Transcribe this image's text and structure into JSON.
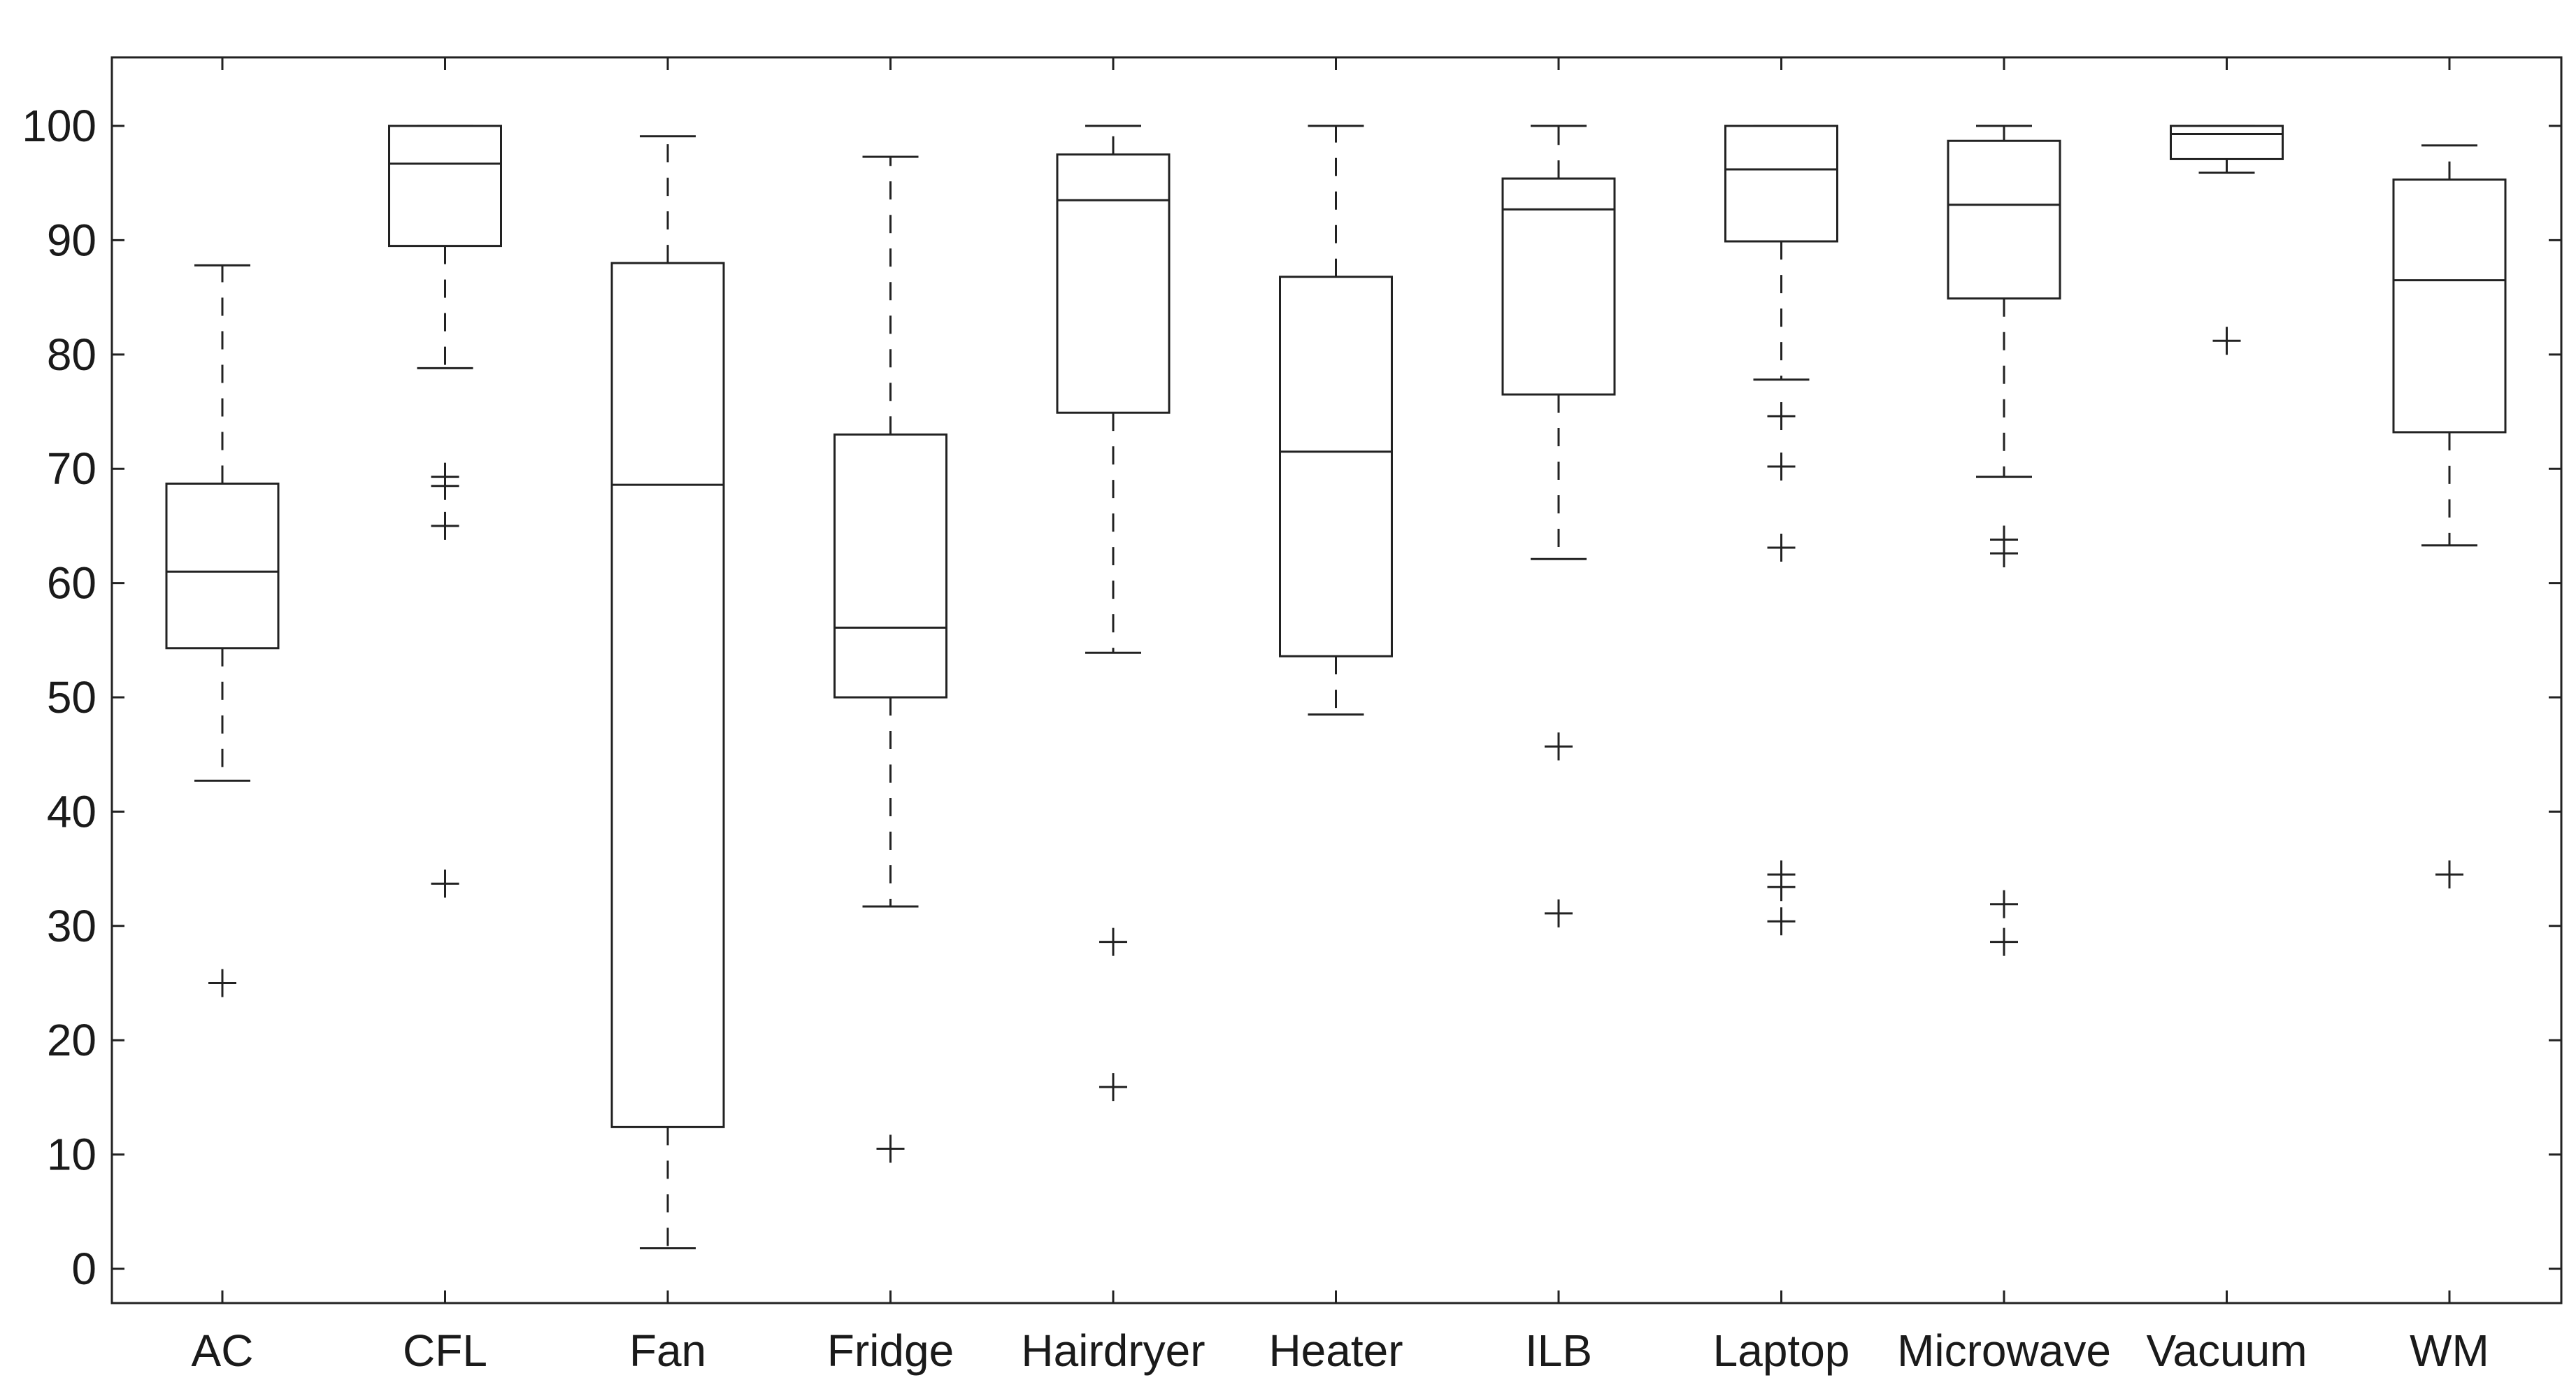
{
  "chart_data": {
    "type": "box",
    "title": "",
    "xlabel": "",
    "ylabel": "",
    "ylim": [
      -3,
      106
    ],
    "yticks": [
      0,
      10,
      20,
      30,
      40,
      50,
      60,
      70,
      80,
      90,
      100
    ],
    "grid": false,
    "categories": [
      "AC",
      "CFL",
      "Fan",
      "Fridge",
      "Hairdryer",
      "Heater",
      "ILB",
      "Laptop",
      "Microwave",
      "Vacuum",
      "WM"
    ],
    "boxes": [
      {
        "category": "AC",
        "whisker_low": 42.7,
        "q1": 54.3,
        "median": 61.0,
        "q3": 68.7,
        "whisker_high": 87.8,
        "outliers": [
          25.0
        ]
      },
      {
        "category": "CFL",
        "whisker_low": 78.8,
        "q1": 89.5,
        "median": 96.7,
        "q3": 100.0,
        "whisker_high": 100.0,
        "outliers": [
          69.3,
          68.5,
          65.0,
          33.7
        ]
      },
      {
        "category": "Fan",
        "whisker_low": 1.8,
        "q1": 12.4,
        "median": 68.6,
        "q3": 88.0,
        "whisker_high": 99.1,
        "outliers": []
      },
      {
        "category": "Fridge",
        "whisker_low": 31.7,
        "q1": 50.0,
        "median": 56.1,
        "q3": 73.0,
        "whisker_high": 97.3,
        "outliers": [
          10.5
        ]
      },
      {
        "category": "Hairdryer",
        "whisker_low": 53.9,
        "q1": 74.9,
        "median": 93.5,
        "q3": 97.5,
        "whisker_high": 100.0,
        "outliers": [
          28.6,
          15.9
        ]
      },
      {
        "category": "Heater",
        "whisker_low": 48.5,
        "q1": 53.6,
        "median": 71.5,
        "q3": 86.8,
        "whisker_high": 100.0,
        "outliers": []
      },
      {
        "category": "ILB",
        "whisker_low": 62.1,
        "q1": 76.5,
        "median": 92.7,
        "q3": 95.4,
        "whisker_high": 100.0,
        "outliers": [
          45.7,
          31.1
        ]
      },
      {
        "category": "Laptop",
        "whisker_low": 77.8,
        "q1": 89.9,
        "median": 96.2,
        "q3": 100.0,
        "whisker_high": 100.0,
        "outliers": [
          74.6,
          70.2,
          63.1,
          34.5,
          33.4,
          30.4
        ]
      },
      {
        "category": "Microwave",
        "whisker_low": 69.3,
        "q1": 84.9,
        "median": 93.1,
        "q3": 98.7,
        "whisker_high": 100.0,
        "outliers": [
          63.8,
          62.6,
          31.9,
          28.6
        ]
      },
      {
        "category": "Vacuum",
        "whisker_low": 95.9,
        "q1": 97.1,
        "median": 99.3,
        "q3": 100.0,
        "whisker_high": 100.0,
        "outliers": [
          81.2
        ]
      },
      {
        "category": "WM",
        "whisker_low": 63.3,
        "q1": 73.2,
        "median": 86.5,
        "q3": 95.3,
        "whisker_high": 98.3,
        "outliers": [
          34.5
        ]
      }
    ]
  }
}
